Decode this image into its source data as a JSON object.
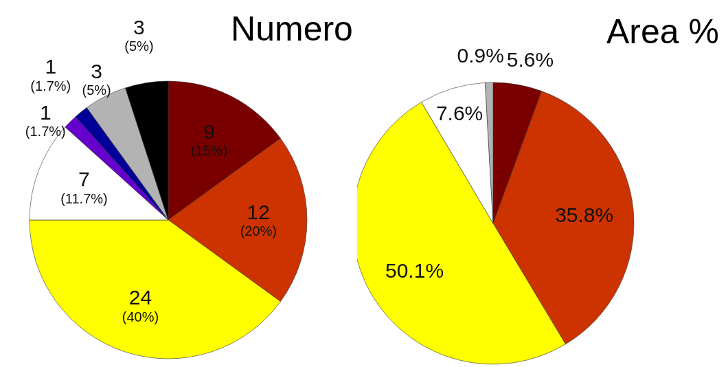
{
  "chart_data": [
    {
      "type": "pie",
      "title": "Numero",
      "categories": [
        null,
        null,
        null,
        null,
        null,
        null,
        null,
        null
      ],
      "values": [
        9,
        12,
        24,
        7,
        1,
        1,
        3,
        3
      ],
      "colors": [
        "#7a0000",
        "#cc3300",
        "#ffff00",
        "#ffffff",
        "#6600cc",
        "#000099",
        "#b3b3b3",
        "#000000"
      ],
      "value_labels": [
        "9\n(15%)",
        "12\n(20%)",
        "24\n(40%)",
        "7\n(11.7%)",
        "1\n(1.7%)",
        "1\n(1.7%)",
        "3\n(5%)",
        "3\n(5%)"
      ],
      "legend": false
    },
    {
      "type": "pie",
      "title": "Area %",
      "categories": [
        null,
        null,
        null,
        null,
        null
      ],
      "values": [
        5.6,
        35.8,
        50.1,
        7.6,
        0.9
      ],
      "colors": [
        "#7a0000",
        "#cc3300",
        "#ffff00",
        "#ffffff",
        "#b3b3b3"
      ],
      "value_labels": [
        "5.6%",
        "35.8%",
        "50.1%",
        "7.6%",
        "0.9%"
      ],
      "legend": false
    }
  ]
}
